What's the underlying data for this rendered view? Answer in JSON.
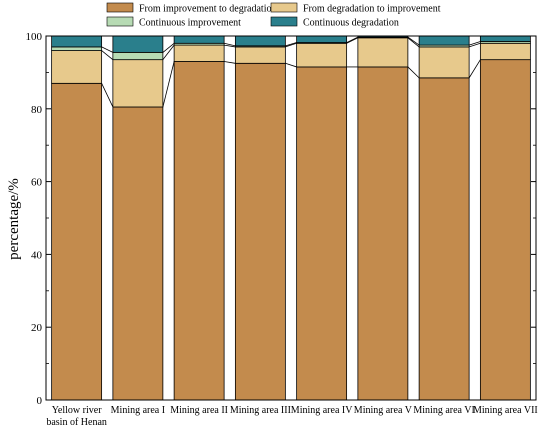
{
  "chart_data": {
    "type": "bar",
    "stacked": true,
    "percent_stacked": true,
    "ylabel": "percentage/%",
    "xlabel": "",
    "ylim": [
      0,
      100
    ],
    "yticks": [
      0,
      20,
      40,
      60,
      80,
      100
    ],
    "grid": false,
    "legend": {
      "placement": "top",
      "columns": 2
    },
    "categories": [
      [
        "Yellow river",
        "basin of Henan"
      ],
      [
        "Mining area I"
      ],
      [
        "Mining area II"
      ],
      [
        "Mining area III"
      ],
      [
        "Mining area IV"
      ],
      [
        "Mining area V"
      ],
      [
        "Mining area VI"
      ],
      [
        "Mining area VII"
      ]
    ],
    "series": [
      {
        "name": "From improvement to degradation",
        "color": "#c38b4d",
        "values": [
          87.0,
          80.5,
          93.0,
          92.5,
          91.5,
          91.5,
          88.5,
          93.5
        ]
      },
      {
        "name": "From degradation to improvement",
        "color": "#e7c98c",
        "values": [
          9.0,
          13.0,
          4.5,
          4.5,
          6.5,
          8.0,
          8.5,
          4.5
        ]
      },
      {
        "name": "Continuous improvement",
        "color": "#b7dbb4",
        "values": [
          1.0,
          2.0,
          0.5,
          0.3,
          0.2,
          0.2,
          0.5,
          0.5
        ]
      },
      {
        "name": "Continuous degradation",
        "color": "#2a7f8c",
        "values": [
          3.0,
          4.5,
          2.0,
          2.7,
          1.8,
          0.3,
          2.5,
          1.5
        ]
      }
    ]
  }
}
